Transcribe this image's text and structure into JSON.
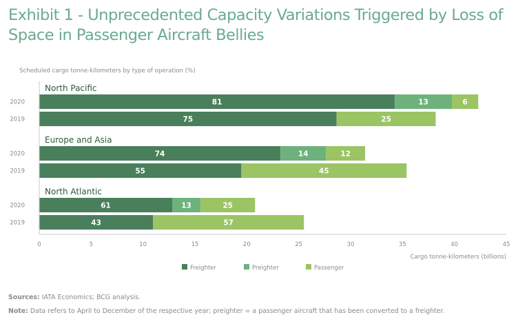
{
  "header": {
    "title_line1": "Exhibit 1 - Unprecedented Capacity Variations Triggered by Loss of",
    "title_line2": "Space in Passenger Aircraft Bellies",
    "subtitle": "Scheduled cargo tonne-kilometers by type of operation (%)"
  },
  "footer": {
    "sources_label": "Sources:",
    "sources_text": " IATA Economics; BCG analysis.",
    "note_label": "Note:",
    "note_text": " Data refers to April to December of the respective year; preighter = a passenger aircraft that has been converted to a freighter."
  },
  "colors": {
    "title": "#6aab8e",
    "freighter": "#4a7f5c",
    "preighter": "#6db27c",
    "passenger": "#9bc464",
    "group_label": "#2e5a3c",
    "axis": "#c8c8c8",
    "tick_text": "#8a8a8a"
  },
  "chart_data": {
    "type": "bar",
    "orientation": "horizontal",
    "stacked": true,
    "title": "Exhibit 1 - Unprecedented Capacity Variations Triggered by Loss of Space in Passenger Aircraft Bellies",
    "subtitle": "Scheduled cargo tonne-kilometers by type of operation (%)",
    "xlabel": "Cargo tonne-kilometers (billions)",
    "ylabel": "",
    "xlim": [
      0,
      45
    ],
    "xticks": [
      0,
      5,
      10,
      15,
      20,
      25,
      30,
      35,
      40,
      45
    ],
    "grid": false,
    "legend_position": "bottom",
    "series_names": [
      "Freighter",
      "Preighter",
      "Passenger"
    ],
    "groups": [
      {
        "name": "North Pacific",
        "bars": [
          {
            "year": "2020",
            "total_billions": 42.3,
            "shares_pct": [
              81,
              13,
              6
            ]
          },
          {
            "year": "2019",
            "total_billions": 38.2,
            "shares_pct": [
              75,
              0,
              25
            ]
          }
        ]
      },
      {
        "name": "Europe and Asia",
        "bars": [
          {
            "year": "2020",
            "total_billions": 31.4,
            "shares_pct": [
              74,
              14,
              12
            ]
          },
          {
            "year": "2019",
            "total_billions": 35.4,
            "shares_pct": [
              55,
              0,
              45
            ]
          }
        ]
      },
      {
        "name": "North Atlantic",
        "bars": [
          {
            "year": "2020",
            "total_billions": 21.0,
            "shares_pct": [
              61,
              13,
              25
            ]
          },
          {
            "year": "2019",
            "total_billions": 25.5,
            "shares_pct": [
              43,
              0,
              57
            ]
          }
        ]
      }
    ]
  }
}
